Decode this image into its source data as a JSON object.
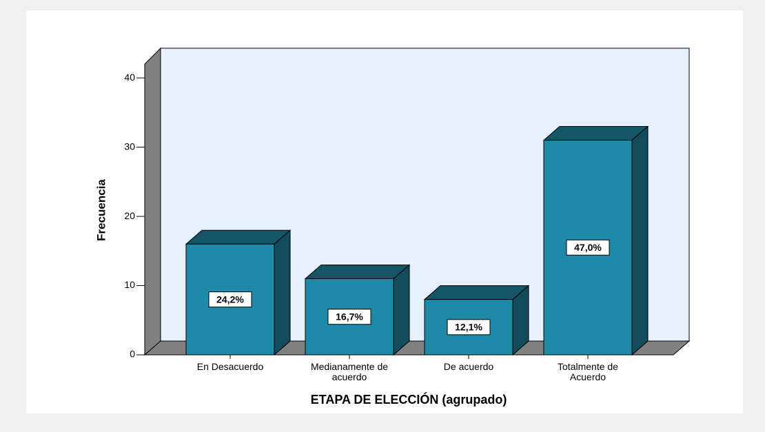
{
  "chart_data": {
    "type": "bar3d",
    "x_label": "ETAPA DE ELECCIÓN (agrupado)",
    "y_label": "Frecuencia",
    "categories": [
      "En Desacuerdo",
      "Medianamente de acuerdo",
      "De acuerdo",
      "Totalmente de Acuerdo"
    ],
    "values": [
      16,
      11,
      8,
      31
    ],
    "percent": {
      "values": [
        24.2,
        16.7,
        12.1,
        47.0
      ],
      "value_labels": [
        "24,2%",
        "16,7%",
        "12,1%",
        "47,0%"
      ]
    },
    "color": "#1f8aa8",
    "ylim": [
      0,
      42
    ],
    "yticks": [
      0,
      10,
      20,
      30,
      40
    ]
  }
}
